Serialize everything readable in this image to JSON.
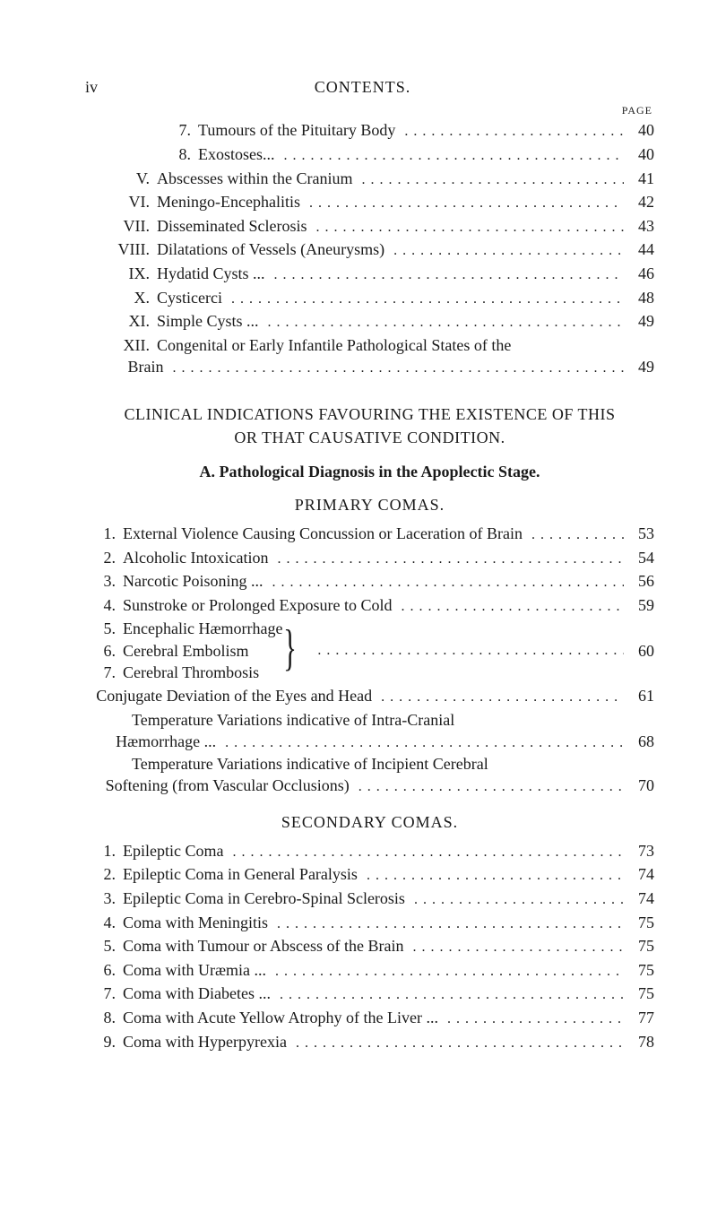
{
  "header": {
    "page_roman": "iv",
    "title": "CONTENTS.",
    "page_col": "PAGE"
  },
  "top_block": [
    {
      "marker": "7.",
      "marker_class": "m-arabic",
      "label": "Tumours of the Pituitary Body",
      "page": "40"
    },
    {
      "marker": "8.",
      "marker_class": "m-arabic",
      "label": "Exostoses...",
      "page": "40"
    },
    {
      "marker": "V.",
      "marker_class": "m-roman",
      "label": "Abscesses within the Cranium",
      "page": "41"
    },
    {
      "marker": "VI.",
      "marker_class": "m-roman",
      "label": "Meningo-Encephalitis",
      "page": "42"
    },
    {
      "marker": "VII.",
      "marker_class": "m-roman",
      "label": "Disseminated Sclerosis",
      "page": "43"
    },
    {
      "marker": "VIII.",
      "marker_class": "m-roman",
      "label": "Dilatations of Vessels (Aneurysms)",
      "page": "44"
    },
    {
      "marker": "IX.",
      "marker_class": "m-roman",
      "label": "Hydatid Cysts ...",
      "page": "46"
    },
    {
      "marker": "X.",
      "marker_class": "m-roman",
      "label": "Cysticerci",
      "page": "48"
    },
    {
      "marker": "XI.",
      "marker_class": "m-roman",
      "label": "Simple Cysts ...",
      "page": "49"
    }
  ],
  "top_wrap": {
    "marker": "XII.",
    "marker_class": "m-roman",
    "line1": "Congenital or Early Infantile Pathological States of the",
    "line2_label": "Brain",
    "page": "49"
  },
  "mid_titles": {
    "t1": "CLINICAL INDICATIONS FAVOURING THE EXISTENCE OF THIS",
    "t2": "OR THAT CAUSATIVE CONDITION.",
    "t3": "A. Pathological Diagnosis in the Apoplectic Stage.",
    "sub1": "PRIMARY COMAS."
  },
  "primary": [
    {
      "marker": "1.",
      "label": "External Violence Causing Concussion or Laceration of Brain",
      "page": "53"
    },
    {
      "marker": "2.",
      "label": "Alcoholic Intoxication",
      "page": "54"
    },
    {
      "marker": "3.",
      "label": "Narcotic Poisoning ...",
      "page": "56"
    },
    {
      "marker": "4.",
      "label": "Sunstroke or Prolonged Exposure to Cold",
      "page": "59"
    }
  ],
  "brace": {
    "items": [
      {
        "marker": "5.",
        "label": "Encephalic Hæmorrhage"
      },
      {
        "marker": "6.",
        "label": "Cerebral Embolism"
      },
      {
        "marker": "7.",
        "label": "Cerebral Thrombosis"
      }
    ],
    "page": "60"
  },
  "primary_indent": [
    {
      "indent": "m-indent1",
      "label": "Conjugate Deviation of the Eyes and Head",
      "page": "61"
    }
  ],
  "primary_wrap1": {
    "indent": "m-indent1",
    "line1": "Temperature Variations indicative of Intra-Cranial",
    "line2_indent": "m-indent2",
    "line2_label": "Hæmorrhage ...",
    "page": "68"
  },
  "primary_wrap2": {
    "indent": "m-indent1",
    "line1": "Temperature Variations indicative of Incipient Cerebral",
    "line2_indent": "m-indent2",
    "line2_label": "Softening (from Vascular Occlusions)",
    "page": "70"
  },
  "sub2": "SECONDARY COMAS.",
  "secondary": [
    {
      "marker": "1.",
      "label": "Epileptic Coma",
      "page": "73"
    },
    {
      "marker": "2.",
      "label": "Epileptic Coma in General Paralysis",
      "page": "74"
    },
    {
      "marker": "3.",
      "label": "Epileptic Coma in Cerebro-Spinal Sclerosis",
      "page": "74"
    },
    {
      "marker": "4.",
      "label": "Coma with Meningitis",
      "page": "75"
    },
    {
      "marker": "5.",
      "label": "Coma with Tumour or Abscess of the Brain",
      "page": "75"
    },
    {
      "marker": "6.",
      "label": "Coma with Uræmia ...",
      "page": "75"
    },
    {
      "marker": "7.",
      "label": "Coma with Diabetes ...",
      "page": "75"
    },
    {
      "marker": "8.",
      "label": "Coma with Acute Yellow Atrophy of the Liver ...",
      "page": "77"
    },
    {
      "marker": "9.",
      "label": "Coma with Hyperpyrexia",
      "page": "78"
    }
  ]
}
